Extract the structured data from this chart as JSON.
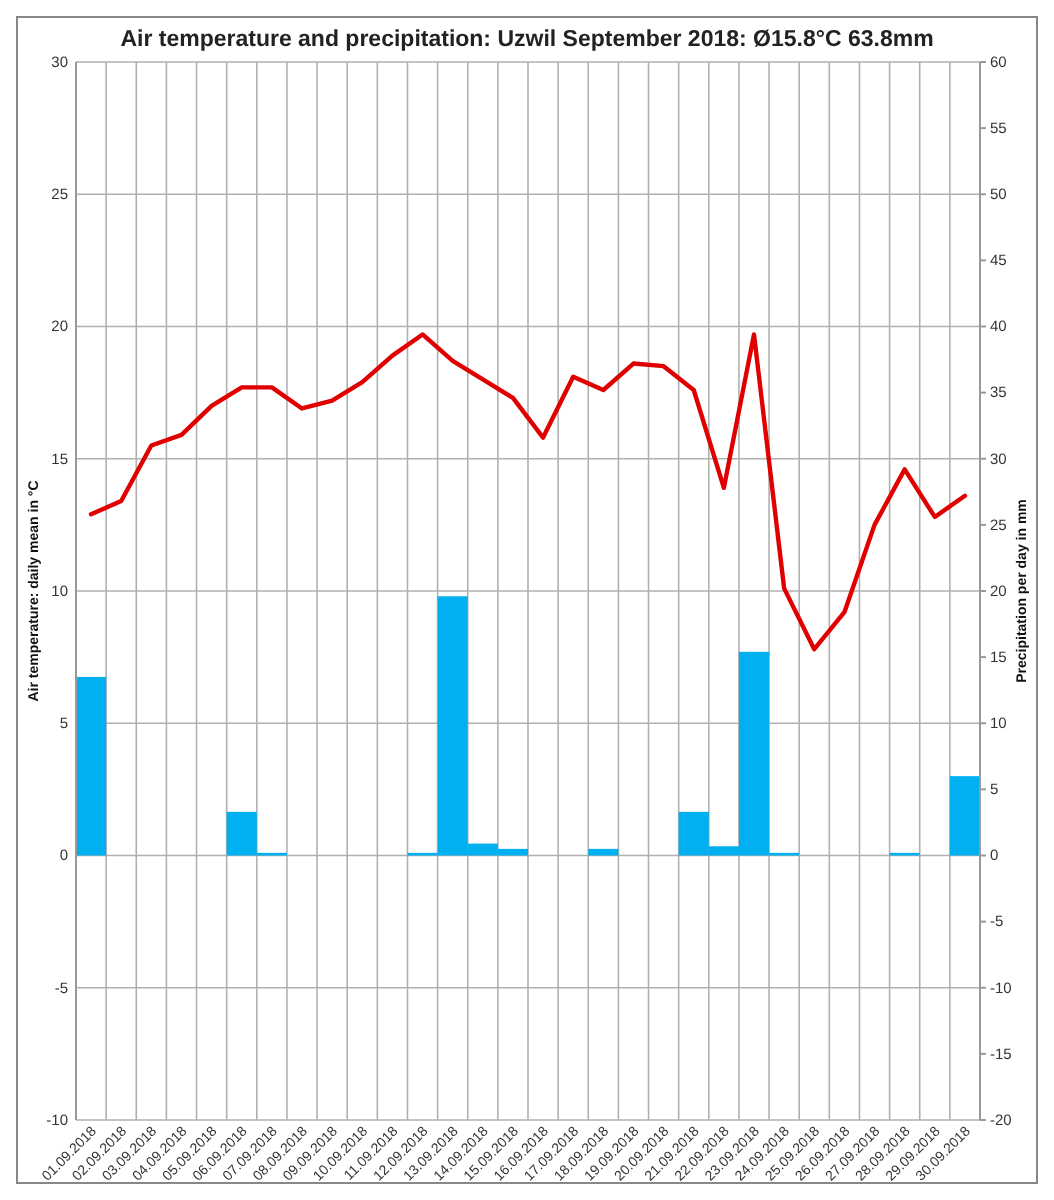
{
  "chart_data": {
    "type": "bar",
    "title": "Air temperature and precipitation: Uzwil September 2018: Ø15.8°C 63.8mm",
    "ylabel": "Air temperature: daily mean in °C",
    "y2label": "Precipitation per day in mm",
    "categories": [
      "01.09.2018",
      "02.09.2018",
      "03.09.2018",
      "04.09.2018",
      "05.09.2018",
      "06.09.2018",
      "07.09.2018",
      "08.09.2018",
      "09.09.2018",
      "10.09.2018",
      "11.09.2018",
      "12.09.2018",
      "13.09.2018",
      "14.09.2018",
      "15.09.2018",
      "16.09.2018",
      "17.09.2018",
      "18.09.2018",
      "19.09.2018",
      "20.09.2018",
      "21.09.2018",
      "22.09.2018",
      "23.09.2018",
      "24.09.2018",
      "25.09.2018",
      "26.09.2018",
      "27.09.2018",
      "28.09.2018",
      "29.09.2018",
      "30.09.2018"
    ],
    "series": [
      {
        "axis": "y2",
        "color": "#00b0f0",
        "values": [
          13.5,
          0,
          0,
          0,
          0,
          3.3,
          0.2,
          0,
          0,
          0,
          0,
          0.2,
          19.6,
          0.9,
          0.5,
          0,
          0,
          0.5,
          0,
          0,
          3.3,
          0.7,
          15.4,
          0.2,
          0,
          0,
          0,
          0.2,
          0,
          6.0
        ]
      },
      {
        "type": "line",
        "axis": "y",
        "color": "#e00000",
        "values": [
          12.9,
          13.4,
          15.5,
          15.9,
          17.0,
          17.7,
          17.7,
          16.9,
          17.2,
          17.9,
          18.9,
          19.7,
          18.7,
          18.0,
          17.3,
          15.8,
          18.1,
          17.6,
          18.6,
          18.5,
          17.6,
          13.9,
          19.7,
          10.1,
          7.8,
          9.2,
          12.5,
          14.6,
          12.8,
          13.6
        ]
      }
    ],
    "ylim": [
      -10,
      30
    ],
    "yticks": [
      -10,
      -5,
      0,
      5,
      10,
      15,
      20,
      25,
      30
    ],
    "y2lim": [
      -20,
      60
    ],
    "y2ticks": [
      -20,
      -15,
      -10,
      -5,
      0,
      5,
      10,
      15,
      20,
      25,
      30,
      35,
      40,
      45,
      50,
      55,
      60
    ],
    "grid": true,
    "marker": "none",
    "line_style": "solid"
  }
}
